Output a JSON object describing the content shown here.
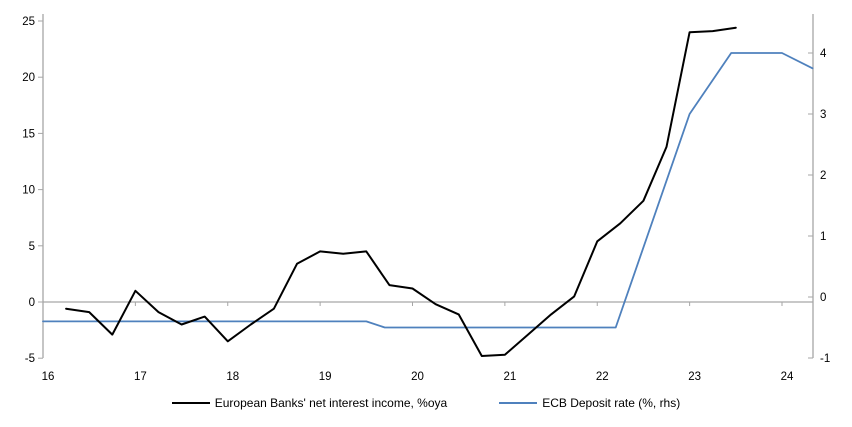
{
  "chart_data": {
    "type": "line",
    "title": "",
    "x_axis": {
      "ticks": [
        16,
        17,
        18,
        19,
        20,
        21,
        22,
        23,
        24
      ],
      "range": [
        16,
        24.33
      ],
      "gridlines": false
    },
    "left_axis": {
      "ticks": [
        25,
        20,
        15,
        10,
        5,
        0,
        -5
      ],
      "range": [
        -5,
        25
      ],
      "gridlines": "zero-line-only"
    },
    "right_axis": {
      "ticks": [
        4,
        3,
        2,
        1,
        0,
        -1
      ],
      "range": [
        -1,
        4
      ],
      "gridlines": false
    },
    "legend_position": "bottom-center",
    "series": [
      {
        "name": "European Banks' net interest income, %oya",
        "axis": "left",
        "color": "#000000",
        "stroke_width": 2,
        "points": [
          [
            16.25,
            -0.6
          ],
          [
            16.5,
            -0.9
          ],
          [
            16.75,
            -2.9
          ],
          [
            17.0,
            1.0
          ],
          [
            17.25,
            -0.9
          ],
          [
            17.5,
            -2.0
          ],
          [
            17.75,
            -1.3
          ],
          [
            18.0,
            -3.5
          ],
          [
            18.25,
            -2.0
          ],
          [
            18.5,
            -0.6
          ],
          [
            18.75,
            3.4
          ],
          [
            19.0,
            4.5
          ],
          [
            19.25,
            4.3
          ],
          [
            19.5,
            4.5
          ],
          [
            19.75,
            1.5
          ],
          [
            20.0,
            1.2
          ],
          [
            20.25,
            -0.2
          ],
          [
            20.5,
            -1.1
          ],
          [
            20.75,
            -4.8
          ],
          [
            21.0,
            -4.7
          ],
          [
            21.25,
            -2.9
          ],
          [
            21.5,
            -1.1
          ],
          [
            21.75,
            0.5
          ],
          [
            22.0,
            5.4
          ],
          [
            22.25,
            7.0
          ],
          [
            22.5,
            9.0
          ],
          [
            22.75,
            13.8
          ],
          [
            23.0,
            24.0
          ],
          [
            23.25,
            24.1
          ],
          [
            23.5,
            24.4
          ]
        ]
      },
      {
        "name": "ECB Deposit rate (%, rhs)",
        "axis": "right",
        "color": "#4f81bd",
        "stroke_width": 1.8,
        "points": [
          [
            16.0,
            -0.4
          ],
          [
            19.5,
            -0.4
          ],
          [
            19.7,
            -0.5
          ],
          [
            22.2,
            -0.5
          ],
          [
            23.0,
            3.0
          ],
          [
            23.45,
            4.0
          ],
          [
            24.0,
            4.0
          ],
          [
            24.33,
            3.75
          ]
        ]
      }
    ]
  },
  "legend": {
    "item1": "European Banks' net interest income, %oya",
    "item2": "ECB Deposit rate (%, rhs)"
  },
  "colors": {
    "axis_line": "#a6a6a6",
    "zero_line": "#a6a6a6",
    "tick_text": "#000000",
    "series_black": "#000000",
    "series_blue": "#4f81bd",
    "background": "#ffffff"
  }
}
